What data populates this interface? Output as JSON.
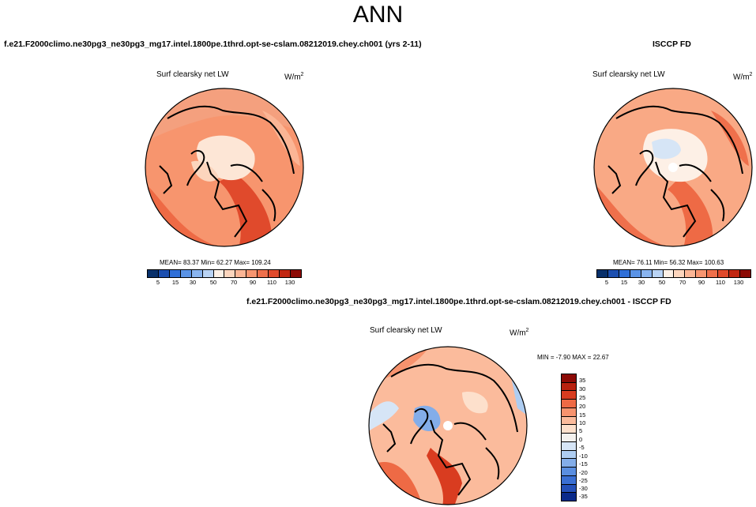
{
  "main_title": "ANN",
  "test_case": {
    "title": "f.e21.F2000climo.ne30pg3_ne30pg3_mg17.intel.1800pe.1thrd.opt-se-cslam.08212019.chey.ch001 (yrs 2-11)",
    "variable": "Surf clearsky net LW",
    "units_base": "W/m",
    "units_exp": "2",
    "stats": "MEAN=  83.37   Min=  62.27   Max= 109.24"
  },
  "obs_case": {
    "title": "ISCCP FD",
    "variable": "Surf clearsky net LW",
    "units_base": "W/m",
    "units_exp": "2",
    "stats": "MEAN=  76.11   Min=  56.32   Max= 100.63"
  },
  "diff_case": {
    "title": "f.e21.F2000climo.ne30pg3_ne30pg3_mg17.intel.1800pe.1thrd.opt-se-cslam.08212019.chey.ch001 - ISCCP FD",
    "variable": "Surf clearsky net LW",
    "units_base": "W/m",
    "units_exp": "2",
    "stats": "MIN =  -7.90 MAX =  22.67"
  },
  "colorbar_abs": {
    "colors": [
      "#08306b",
      "#1c4fb0",
      "#2f6fd8",
      "#5a93e6",
      "#89b4ef",
      "#b9d3f4",
      "#fdf0e6",
      "#fcd5bd",
      "#fbb595",
      "#f79570",
      "#ef704c",
      "#e04a2c",
      "#c22712",
      "#8c0a05"
    ],
    "tick_labels": [
      "5",
      "15",
      "30",
      "50",
      "70",
      "90",
      "110",
      "130"
    ]
  },
  "colorbar_diff": {
    "colors": [
      "#8c0a05",
      "#b8210f",
      "#d93c20",
      "#ee6a45",
      "#f7936e",
      "#fbbb9c",
      "#fde0cc",
      "#f4f1ee",
      "#d6e5f6",
      "#aecdf1",
      "#83ade9",
      "#5a8ee0",
      "#3a6fd3",
      "#2450b8",
      "#0a2a8a"
    ],
    "tick_labels": [
      "35",
      "30",
      "25",
      "20",
      "15",
      "10",
      "5",
      "0",
      "-5",
      "-10",
      "-15",
      "-20",
      "-25",
      "-30",
      "-35"
    ]
  }
}
